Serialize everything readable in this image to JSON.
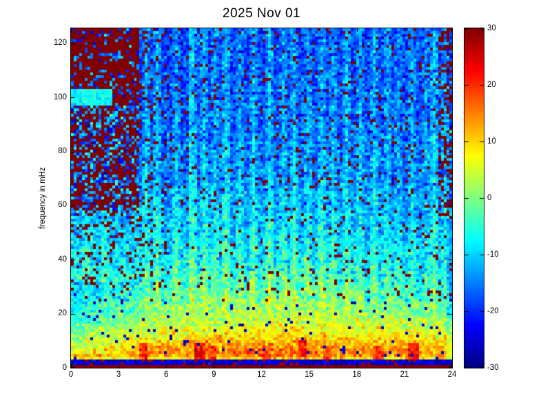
{
  "window": {
    "background": "#ffffff"
  },
  "chart_data": {
    "type": "heatmap",
    "title": "2025 Nov 01",
    "xlabel": "",
    "ylabel": "frequency in mHz",
    "x_range": [
      0,
      24
    ],
    "y_range": [
      0,
      125.6
    ],
    "x_ticks": [
      0,
      3,
      6,
      9,
      12,
      15,
      18,
      21,
      24
    ],
    "y_ticks": [
      0,
      20,
      40,
      60,
      80,
      100,
      120
    ],
    "grid": {
      "cols": 139,
      "rows": 123
    },
    "legend": "none",
    "axes_on": true,
    "colorbar": {
      "position": "right",
      "min": -30,
      "max": 30,
      "ticks": [
        30,
        20,
        10,
        0,
        -10,
        -20,
        -30
      ],
      "colormap": "jet"
    },
    "colormap_stops": [
      [
        0.0,
        [
          0,
          0,
          131
        ]
      ],
      [
        0.125,
        [
          0,
          0,
          255
        ]
      ],
      [
        0.375,
        [
          0,
          255,
          255
        ]
      ],
      [
        0.625,
        [
          255,
          255,
          0
        ]
      ],
      [
        0.875,
        [
          255,
          0,
          0
        ]
      ],
      [
        1.0,
        [
          128,
          0,
          0
        ]
      ]
    ],
    "field": {
      "description": "Spectrogram of power (dB) vs time-of-day (0-24 h) and frequency (0-125 mHz). Power greatest below ~20 mHz (yellow/orange, ~+5..+15 dB) and decays toward -18 dB at high frequency (blue). Hours 0-4.3 saturated (+30 dB, dark red) above ~58 mHz, nearly solid above ~97 mHz, with a cyan stripe near 100 mHz before hour 2.6. Bottom bin (~0-1 mHz) saturated dark red across all hours with a dark-blue bin (~1-3 mHz) just above. Cyan vertical streaks throughout the blue region; scattered saturated-red single-cell speckles everywhere.",
      "seed": 20251101,
      "noise_db": 3.2,
      "base_profile": [
        [
          0,
          31
        ],
        [
          1,
          -10
        ],
        [
          2,
          -24
        ],
        [
          3,
          2
        ],
        [
          4,
          12
        ],
        [
          6,
          13
        ],
        [
          9,
          10
        ],
        [
          13,
          6
        ],
        [
          18,
          2
        ],
        [
          22,
          0
        ],
        [
          27,
          -3
        ],
        [
          33,
          -6
        ],
        [
          42,
          -9
        ],
        [
          52,
          -11
        ],
        [
          62,
          -13
        ],
        [
          72,
          -15
        ],
        [
          85,
          -16.5
        ],
        [
          100,
          -17.5
        ],
        [
          126,
          -18.5
        ]
      ],
      "warm_bump": {
        "center_hour": 13,
        "sigma_hours": 6,
        "amplitude_db": 3.5,
        "max_freq": 45
      },
      "left_cool": {
        "hours": [
          0,
          5.5
        ],
        "freq": [
          5,
          32
        ],
        "delta": -7
      },
      "evening_cool": {
        "start_hour": 17,
        "freq": [
          18,
          75
        ],
        "delta": -2.5
      },
      "right_edge_cool": {
        "start_hour": 23.6,
        "max_freq": 40,
        "delta": -6
      },
      "streak_fade": [
        16,
        30
      ],
      "streaks": [
        [
          0.9,
          4
        ],
        [
          2.2,
          3
        ],
        [
          4.8,
          5
        ],
        [
          5.5,
          6
        ],
        [
          6.7,
          5
        ],
        [
          7.6,
          7
        ],
        [
          8.3,
          6
        ],
        [
          9.1,
          5
        ],
        [
          9.8,
          7
        ],
        [
          10.6,
          5
        ],
        [
          11.4,
          6
        ],
        [
          12.5,
          7
        ],
        [
          13.3,
          5
        ],
        [
          14.1,
          6
        ],
        [
          14.9,
          5
        ],
        [
          15.8,
          6
        ],
        [
          16.5,
          5
        ],
        [
          17.3,
          6
        ],
        [
          18.2,
          5
        ],
        [
          19.0,
          6
        ],
        [
          19.9,
          5
        ],
        [
          20.7,
          4
        ],
        [
          21.5,
          5
        ],
        [
          22.3,
          4
        ],
        [
          22.9,
          8
        ],
        [
          23.5,
          5
        ]
      ],
      "speckles": {
        "red_prob": 0.055,
        "red_value": 31,
        "red_min_freq": 24,
        "blue_prob": 0.035,
        "blue_value": -26,
        "blue_max_freq": 26,
        "dim_prob": 0.05,
        "dim_delta": 7
      },
      "saturated_block": {
        "hours": [
          0,
          4.3
        ],
        "solid_freq": [
          97,
          126
        ],
        "solid_red_fraction": 0.78,
        "mixed_freq": [
          58,
          97
        ],
        "mixed_red_fraction": 0.55,
        "lower_freq": [
          30,
          58
        ],
        "lower_red_prob": 0.12,
        "stripe": {
          "max_hour": 2.6,
          "freq": [
            97,
            103
          ],
          "value": -7
        },
        "extended_hour": 6,
        "extended_red_prob": 0.09
      },
      "right_edge_red": {
        "hours": [
          23.2,
          24
        ],
        "freq": [
          55,
          126
        ],
        "prob": 0.3
      },
      "bottom_rows": {
        "red_below_mhz": 1.2,
        "red_value": 31,
        "blue_range": [
          1.2,
          3.1
        ],
        "blue_value": -25,
        "blue_red_patch_prob": 0.12
      },
      "hot_spots": [
        [
          4.6,
          6,
          20
        ],
        [
          8.15,
          6,
          22
        ],
        [
          8.9,
          5,
          18
        ],
        [
          12.3,
          5,
          18
        ],
        [
          14.6,
          7,
          22
        ],
        [
          16.1,
          5,
          18
        ],
        [
          19.3,
          5,
          19
        ],
        [
          21.6,
          6,
          20
        ]
      ]
    }
  }
}
